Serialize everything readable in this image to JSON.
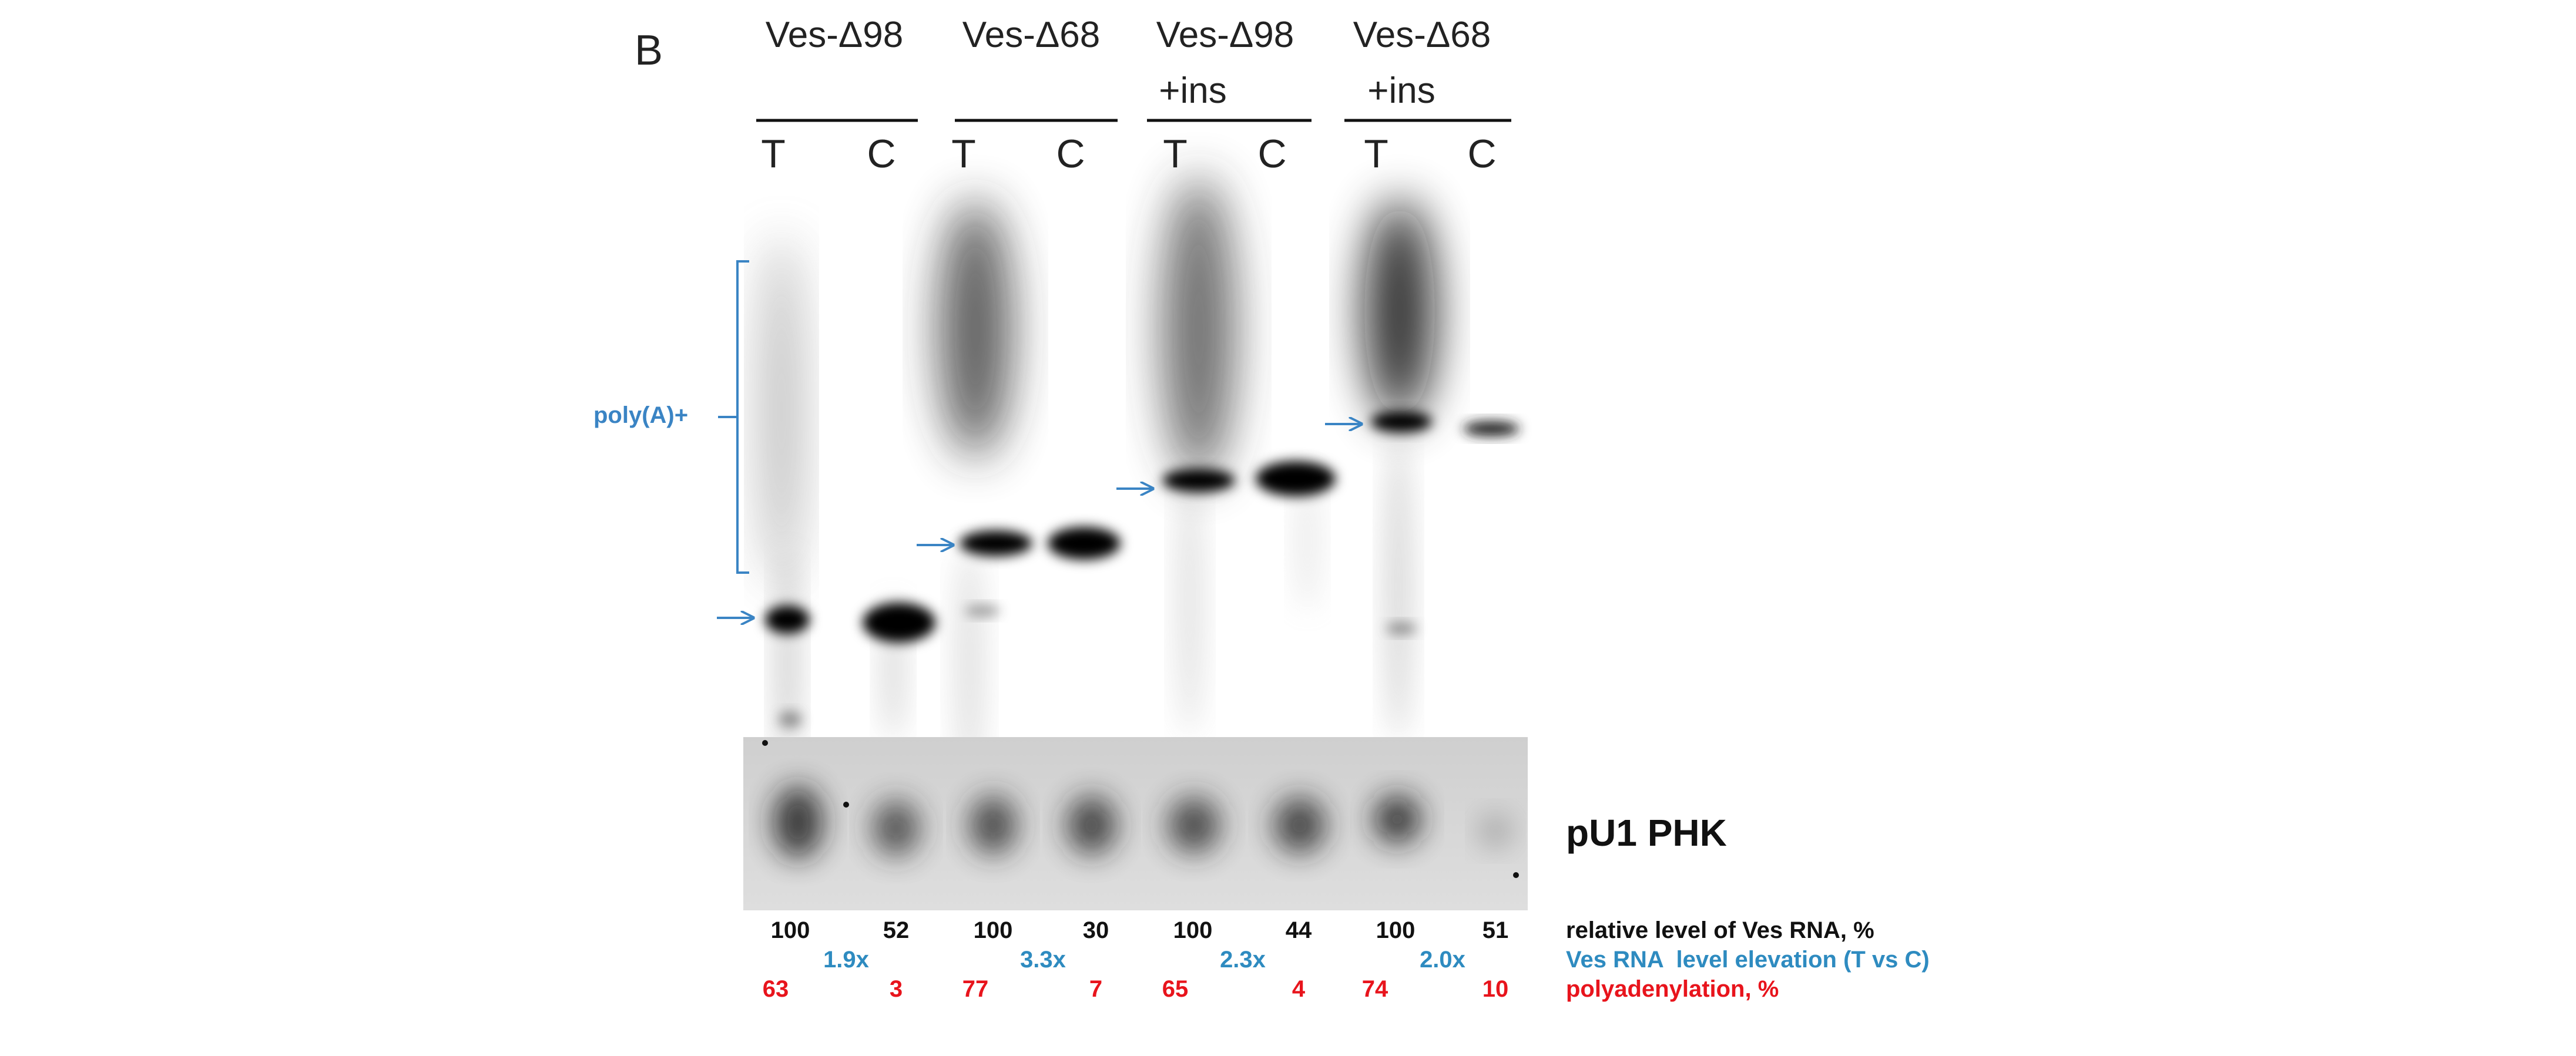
{
  "panel_label": "B",
  "groups": [
    {
      "name_line1": "Ves-Δ98",
      "name_line2": ""
    },
    {
      "name_line1": "Ves-Δ68",
      "name_line2": ""
    },
    {
      "name_line1": "Ves-Δ98",
      "name_line2": "+ins"
    },
    {
      "name_line1": "Ves-Δ68",
      "name_line2": "+ins"
    }
  ],
  "lane_labels": [
    "T",
    "C",
    "T",
    "C",
    "T",
    "C",
    "T",
    "C"
  ],
  "polyA_label": "poly(A)+",
  "control_label": "pU1 PHK",
  "rows": {
    "relative_level": {
      "label": "relative level of Ves RNA, %",
      "values": [
        "100",
        "52",
        "100",
        "30",
        "100",
        "44",
        "100",
        "51"
      ],
      "color": "#111111"
    },
    "elevation": {
      "label": "Ves RNA  level elevation (T vs C)",
      "values": [
        "1.9x",
        "3.3x",
        "2.3x",
        "2.0x"
      ],
      "color": "#2e8bc0"
    },
    "polyadenylation": {
      "label": "polyadenylation, %",
      "values": [
        "63",
        "3",
        "77",
        "7",
        "65",
        "4",
        "74",
        "10"
      ],
      "color": "#e8141c"
    }
  },
  "colors": {
    "annotation_blue": "#3a84c4",
    "gel_background": "#d8d8d8"
  }
}
